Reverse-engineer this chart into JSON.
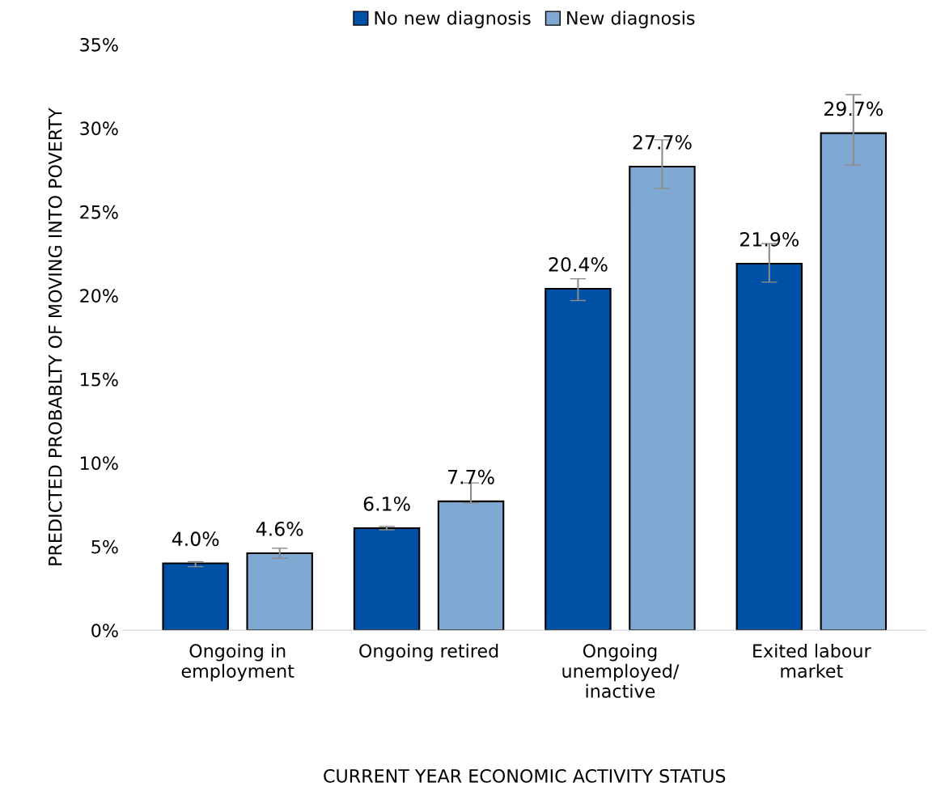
{
  "chart_data": {
    "type": "bar",
    "xlabel": "CURRENT YEAR ECONOMIC ACTIVITY STATUS",
    "ylabel": "PREDICTED PROBABLTY OF MOVING INTO POVERTY",
    "categories": [
      "Ongoing in\nemployment",
      "Ongoing retired",
      "Ongoing\nunemployed/\ninactive",
      "Exited labour\nmarket"
    ],
    "series": [
      {
        "name": "No new diagnosis",
        "color": "#0051a5",
        "values": [
          4.0,
          6.1,
          20.4,
          21.9
        ],
        "errors": [
          [
            3.8,
            4.1
          ],
          [
            6.0,
            6.2
          ],
          [
            19.7,
            21.0
          ],
          [
            20.8,
            23.1
          ]
        ],
        "value_labels": [
          "4.0%",
          "6.1%",
          "20.4%",
          "21.9%"
        ]
      },
      {
        "name": "New diagnosis",
        "color": "#7fa8d3",
        "values": [
          4.6,
          7.7,
          27.7,
          29.7
        ],
        "errors": [
          [
            4.3,
            4.9
          ],
          [
            7.6,
            8.8
          ],
          [
            26.4,
            29.3
          ],
          [
            27.8,
            32.0
          ]
        ],
        "value_labels": [
          "4.6%",
          "7.7%",
          "27.7%",
          "29.7%"
        ]
      }
    ],
    "ylim": [
      0,
      35
    ],
    "yticks": [
      {
        "value": 0,
        "label": "0%"
      },
      {
        "value": 5,
        "label": "5%"
      },
      {
        "value": 10,
        "label": "10%"
      },
      {
        "value": 15,
        "label": "15%"
      },
      {
        "value": 20,
        "label": "20%"
      },
      {
        "value": 25,
        "label": "25%"
      },
      {
        "value": 30,
        "label": "30%"
      },
      {
        "value": 35,
        "label": "35%"
      }
    ],
    "grid": false,
    "legend": "top"
  }
}
